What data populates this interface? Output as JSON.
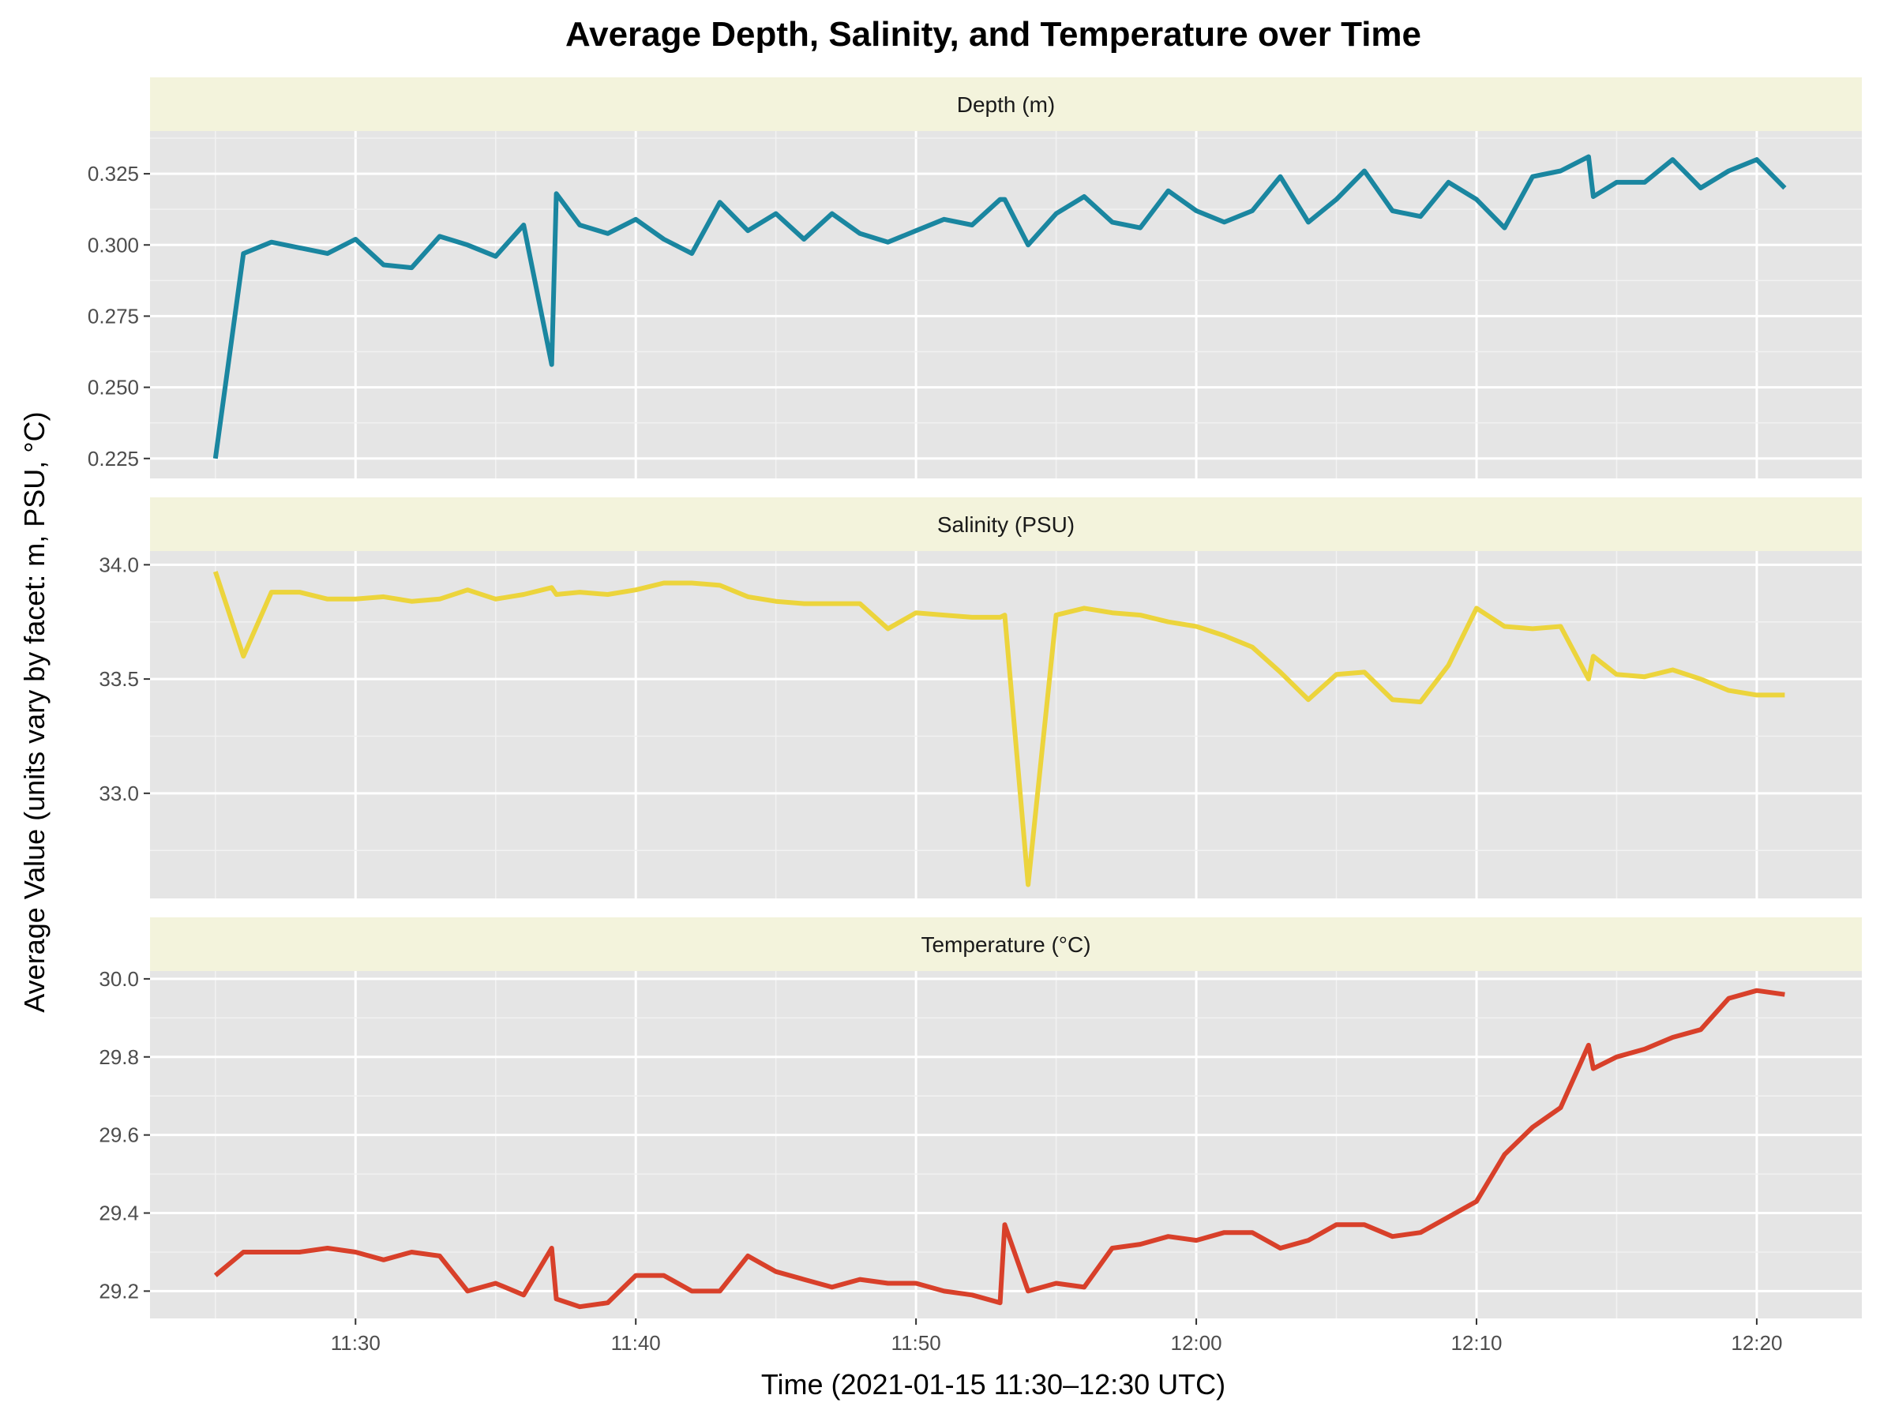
{
  "chart_data": {
    "type": "line",
    "title": "Average Depth, Salinity, and Temperature over Time",
    "xlabel": "Time (2021-01-15 11:30–12:30 UTC)",
    "ylabel": "Average Value (units vary by facet: m, PSU, °C)",
    "x_ticks": [
      "11:30",
      "11:40",
      "11:50",
      "12:00",
      "12:10",
      "12:20"
    ],
    "grid": true,
    "x": [
      "11:25",
      "11:26",
      "11:27",
      "11:28",
      "11:29",
      "11:30",
      "11:31",
      "11:32",
      "11:33",
      "11:34",
      "11:35",
      "11:36",
      "11:37",
      "11:37:10",
      "11:38",
      "11:39",
      "11:40",
      "11:41",
      "11:42",
      "11:43",
      "11:44",
      "11:45",
      "11:46",
      "11:47",
      "11:48",
      "11:49",
      "11:50",
      "11:51",
      "11:52",
      "11:53",
      "11:53:10",
      "11:54",
      "11:55",
      "11:56",
      "11:57",
      "11:58",
      "11:59",
      "12:00",
      "12:01",
      "12:02",
      "12:03",
      "12:04",
      "12:05",
      "12:06",
      "12:07",
      "12:08",
      "12:09",
      "12:10",
      "12:11",
      "12:12",
      "12:13",
      "12:14",
      "12:14:10",
      "12:15",
      "12:16",
      "12:17",
      "12:18",
      "12:19",
      "12:20",
      "12:21"
    ],
    "facets": [
      {
        "name": "Depth (m)",
        "color": "#1a86a0",
        "ylim": [
          0.218,
          0.34
        ],
        "y_ticks": [
          "0.225",
          "0.250",
          "0.275",
          "0.300",
          "0.325"
        ],
        "values": [
          0.225,
          0.297,
          0.301,
          0.299,
          0.297,
          0.302,
          0.293,
          0.292,
          0.303,
          0.3,
          0.296,
          0.307,
          0.258,
          0.318,
          0.307,
          0.304,
          0.309,
          0.302,
          0.297,
          0.315,
          0.305,
          0.311,
          0.302,
          0.311,
          0.304,
          0.301,
          0.305,
          0.309,
          0.307,
          0.316,
          0.316,
          0.3,
          0.311,
          0.317,
          0.308,
          0.306,
          0.319,
          0.312,
          0.308,
          0.312,
          0.324,
          0.308,
          0.316,
          0.326,
          0.312,
          0.31,
          0.322,
          0.316,
          0.306,
          0.324,
          0.326,
          0.331,
          0.317,
          0.322,
          0.322,
          0.33,
          0.32,
          0.326,
          0.33,
          0.32
        ]
      },
      {
        "name": "Salinity (PSU)",
        "color": "#ecd43c",
        "ylim": [
          32.54,
          34.06
        ],
        "y_ticks": [
          "33.0",
          "33.5",
          "34.0"
        ],
        "values": [
          33.97,
          33.6,
          33.88,
          33.88,
          33.85,
          33.85,
          33.86,
          33.84,
          33.85,
          33.89,
          33.85,
          33.87,
          33.9,
          33.87,
          33.88,
          33.87,
          33.89,
          33.92,
          33.92,
          33.91,
          33.86,
          33.84,
          33.83,
          33.83,
          33.83,
          33.72,
          33.79,
          33.78,
          33.77,
          33.77,
          33.78,
          32.6,
          33.78,
          33.81,
          33.79,
          33.78,
          33.75,
          33.73,
          33.69,
          33.64,
          33.53,
          33.41,
          33.52,
          33.53,
          33.41,
          33.4,
          33.56,
          33.81,
          33.73,
          33.72,
          33.73,
          33.5,
          33.6,
          33.52,
          33.51,
          33.54,
          33.5,
          33.45,
          33.43,
          33.43
        ]
      },
      {
        "name": "Temperature (°C)",
        "color": "#d8402a",
        "ylim": [
          29.13,
          30.02
        ],
        "y_ticks": [
          "29.2",
          "29.4",
          "29.6",
          "29.8",
          "30.0"
        ],
        "values": [
          29.24,
          29.3,
          29.3,
          29.3,
          29.31,
          29.3,
          29.28,
          29.3,
          29.29,
          29.2,
          29.22,
          29.19,
          29.31,
          29.18,
          29.16,
          29.17,
          29.24,
          29.24,
          29.2,
          29.2,
          29.29,
          29.25,
          29.23,
          29.21,
          29.23,
          29.22,
          29.22,
          29.2,
          29.19,
          29.17,
          29.37,
          29.2,
          29.22,
          29.21,
          29.31,
          29.32,
          29.34,
          29.33,
          29.35,
          29.35,
          29.31,
          29.33,
          29.37,
          29.37,
          29.34,
          29.35,
          29.39,
          29.43,
          29.55,
          29.62,
          29.67,
          29.83,
          29.77,
          29.8,
          29.82,
          29.85,
          29.87,
          29.95,
          29.97,
          29.96
        ]
      }
    ]
  }
}
